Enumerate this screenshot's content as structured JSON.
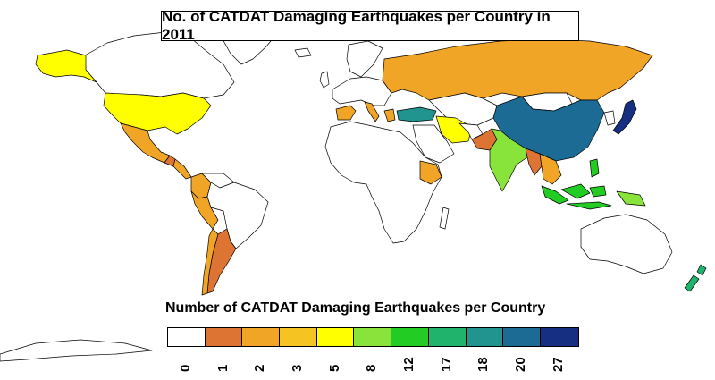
{
  "title": "No. of CATDAT Damaging Earthquakes per Country in 2011",
  "legend": {
    "title": "Number of CATDAT Damaging Earthquakes per Country",
    "bins": [
      {
        "label": "0",
        "color": "#ffffff"
      },
      {
        "label": "1",
        "color": "#de7433"
      },
      {
        "label": "2",
        "color": "#f0a527"
      },
      {
        "label": "3",
        "color": "#f5c322"
      },
      {
        "label": "5",
        "color": "#ffff00"
      },
      {
        "label": "8",
        "color": "#88e33a"
      },
      {
        "label": "12",
        "color": "#22cc22"
      },
      {
        "label": "17",
        "color": "#1fb36c"
      },
      {
        "label": "18",
        "color": "#22948f"
      },
      {
        "label": "20",
        "color": "#1c6b94"
      },
      {
        "label": "27",
        "color": "#162f80"
      }
    ]
  },
  "countries": [
    {
      "name": "United States",
      "value": 5
    },
    {
      "name": "Alaska",
      "value": 5
    },
    {
      "name": "Canada",
      "value": 0
    },
    {
      "name": "Greenland",
      "value": 0
    },
    {
      "name": "Mexico",
      "value": 2
    },
    {
      "name": "Guatemala",
      "value": 1
    },
    {
      "name": "Colombia",
      "value": 2
    },
    {
      "name": "Peru",
      "value": 2
    },
    {
      "name": "Brazil",
      "value": 0
    },
    {
      "name": "Chile",
      "value": 2
    },
    {
      "name": "Argentina",
      "value": 1
    },
    {
      "name": "Russia",
      "value": 2
    },
    {
      "name": "Turkey",
      "value": 18
    },
    {
      "name": "Greece",
      "value": 2
    },
    {
      "name": "Italy",
      "value": 2
    },
    {
      "name": "Spain",
      "value": 2
    },
    {
      "name": "Iran",
      "value": 5
    },
    {
      "name": "Pakistan",
      "value": 1
    },
    {
      "name": "India",
      "value": 8
    },
    {
      "name": "China",
      "value": 20
    },
    {
      "name": "Japan",
      "value": 27
    },
    {
      "name": "Myanmar",
      "value": 1
    },
    {
      "name": "Indonesia",
      "value": 12
    },
    {
      "name": "Philippines",
      "value": 12
    },
    {
      "name": "Papua New Guinea",
      "value": 8
    },
    {
      "name": "Ethiopia",
      "value": 2
    },
    {
      "name": "New Zealand",
      "value": 17
    },
    {
      "name": "Australia",
      "value": 0
    },
    {
      "name": "Africa",
      "value": 0
    },
    {
      "name": "Antarctica",
      "value": 0
    }
  ]
}
